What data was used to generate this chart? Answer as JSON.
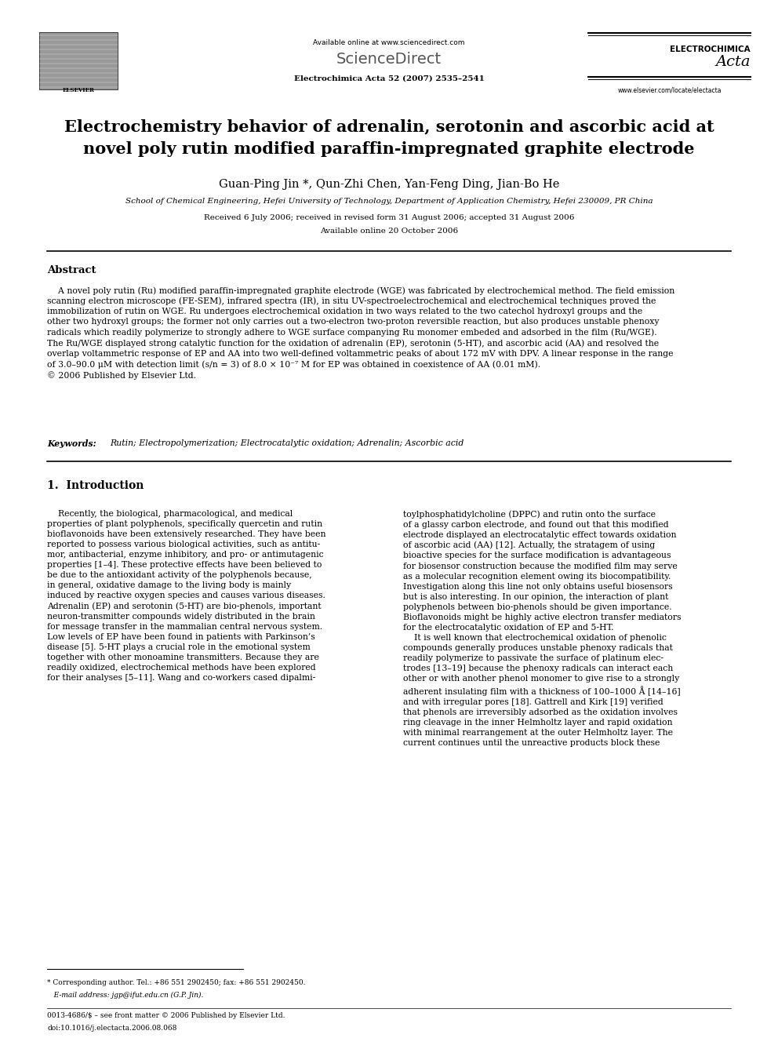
{
  "bg_color": "#ffffff",
  "page_width": 9.92,
  "page_height": 13.23,
  "header": {
    "available_online": "Available online at www.sciencedirect.com",
    "journal_name": "Electrochimica Acta 52 (2007) 2535–2541",
    "electrochimica": "ELECTROCHIMICA",
    "acta_italic": "Acta",
    "website": "www.elsevier.com/locate/electacta"
  },
  "title": "Electrochemistry behavior of adrenalin, serotonin and ascorbic acid at\nnovel poly rutin modified paraffin-impregnated graphite electrode",
  "authors": "Guan-Ping Jin *, Qun-Zhi Chen, Yan-Feng Ding, Jian-Bo He",
  "affiliation": "School of Chemical Engineering, Hefei University of Technology, Department of Application Chemistry, Hefei 230009, PR China",
  "received": "Received 6 July 2006; received in revised form 31 August 2006; accepted 31 August 2006",
  "available": "Available online 20 October 2006",
  "abstract_title": "Abstract",
  "abstract_text": "    A novel poly rutin (Ru) modified paraffin-impregnated graphite electrode (WGE) was fabricated by electrochemical method. The field emission\nscanning electron microscope (FE-SEM), infrared spectra (IR), in situ UV-spectroelectrochemical and electrochemical techniques proved the\nimmobilization of rutin on WGE. Ru undergoes electrochemical oxidation in two ways related to the two catechol hydroxyl groups and the\nother two hydroxyl groups; the former not only carries out a two-electron two-proton reversible reaction, but also produces unstable phenoxy\nradicals which readily polymerize to strongly adhere to WGE surface companying Ru monomer embeded and adsorbed in the film (Ru/WGE).\nThe Ru/WGE displayed strong catalytic function for the oxidation of adrenalin (EP), serotonin (5-HT), and ascorbic acid (AA) and resolved the\noverlap voltammetric response of EP and AA into two well-defined voltammetric peaks of about 172 mV with DPV. A linear response in the range\nof 3.0–90.0 μM with detection limit (s/n = 3) of 8.0 × 10⁻⁷ M for EP was obtained in coexistence of AA (0.01 mM).\n© 2006 Published by Elsevier Ltd.",
  "keywords_label": "Keywords:",
  "keywords_text": "Rutin; Electropolymerization; Electrocatalytic oxidation; Adrenalin; Ascorbic acid",
  "intro_title": "1.  Introduction",
  "intro_col1": "    Recently, the biological, pharmacological, and medical\nproperties of plant polyphenols, specifically quercetin and rutin\nbioflavonoids have been extensively researched. They have been\nreported to possess various biological activities, such as antitu-\nmor, antibacterial, enzyme inhibitory, and pro- or antimutagenic\nproperties [1–4]. These protective effects have been believed to\nbe due to the antioxidant activity of the polyphenols because,\nin general, oxidative damage to the living body is mainly\ninduced by reactive oxygen species and causes various diseases.\nAdrenalin (EP) and serotonin (5-HT) are bio-phenols, important\nneuron-transmitter compounds widely distributed in the brain\nfor message transfer in the mammalian central nervous system.\nLow levels of EP have been found in patients with Parkinson’s\ndisease [5]. 5-HT plays a crucial role in the emotional system\ntogether with other monoamine transmitters. Because they are\nreadily oxidized, electrochemical methods have been explored\nfor their analyses [5–11]. Wang and co-workers cased dipalmi-",
  "intro_col2": "toylphosphatidylcholine (DPPC) and rutin onto the surface\nof a glassy carbon electrode, and found out that this modified\nelectrode displayed an electrocatalytic effect towards oxidation\nof ascorbic acid (AA) [12]. Actually, the stratagem of using\nbioactive species for the surface modification is advantageous\nfor biosensor construction because the modified film may serve\nas a molecular recognition element owing its biocompatibility.\nInvestigation along this line not only obtains useful biosensors\nbut is also interesting. In our opinion, the interaction of plant\npolyphenols between bio-phenols should be given importance.\nBioflavonoids might be highly active electron transfer mediators\nfor the electrocatalytic oxidation of EP and 5-HT.\n    It is well known that electrochemical oxidation of phenolic\ncompounds generally produces unstable phenoxy radicals that\nreadily polymerize to passivate the surface of platinum elec-\ntrodes [13–19] because the phenoxy radicals can interact each\nother or with another phenol monomer to give rise to a strongly\nadherent insulating film with a thickness of 100–1000 Å [14–16]\nand with irregular pores [18]. Gattrell and Kirk [19] verified\nthat phenols are irreversibly adsorbed as the oxidation involves\nring cleavage in the inner Helmholtz layer and rapid oxidation\nwith minimal rearrangement at the outer Helmholtz layer. The\ncurrent continues until the unreactive products block these",
  "footnote_star": "* Corresponding author. Tel.: +86 551 2902450; fax: +86 551 2902450.",
  "footnote_email": "   E-mail address: jgp@ifut.edu.cn (G.P. Jin).",
  "footnote_issn": "0013-4686/$ – see front matter © 2006 Published by Elsevier Ltd.",
  "footnote_doi": "doi:10.1016/j.electacta.2006.08.068"
}
